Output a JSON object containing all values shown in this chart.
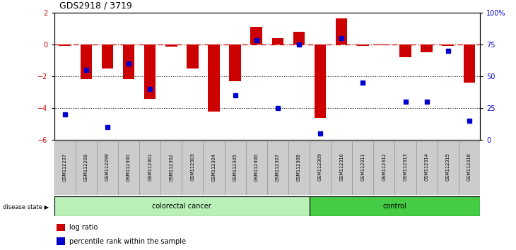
{
  "title": "GDS2918 / 3719",
  "samples": [
    "GSM112207",
    "GSM112208",
    "GSM112299",
    "GSM112300",
    "GSM112301",
    "GSM112302",
    "GSM112303",
    "GSM112304",
    "GSM112305",
    "GSM112306",
    "GSM112307",
    "GSM112308",
    "GSM112309",
    "GSM112310",
    "GSM112311",
    "GSM112312",
    "GSM112313",
    "GSM112314",
    "GSM112315",
    "GSM112316"
  ],
  "log_ratio": [
    -0.1,
    -2.2,
    -1.5,
    -2.2,
    -3.4,
    -0.15,
    -1.5,
    -4.2,
    -2.3,
    1.1,
    0.4,
    0.8,
    -4.6,
    1.65,
    -0.1,
    -0.05,
    -0.8,
    -0.5,
    -0.1,
    -2.4
  ],
  "percentile_rank": [
    20,
    55,
    10,
    60,
    40,
    null,
    null,
    null,
    35,
    78,
    25,
    75,
    5,
    80,
    45,
    null,
    30,
    30,
    70,
    15
  ],
  "colorectal_count": 12,
  "control_count": 8,
  "bar_color": "#cc0000",
  "dot_color": "#0000cc",
  "ylim": [
    -6,
    2
  ],
  "yticks_left": [
    -6,
    -4,
    -2,
    0,
    2
  ],
  "yticks_right": [
    0,
    25,
    50,
    75,
    100
  ],
  "hline_dotted": [
    -2,
    -4
  ],
  "colorectal_color": "#b8f0b8",
  "control_color": "#44cc44",
  "legend_items": [
    "log ratio",
    "percentile rank within the sample"
  ],
  "legend_colors": [
    "#cc0000",
    "#0000cc"
  ]
}
